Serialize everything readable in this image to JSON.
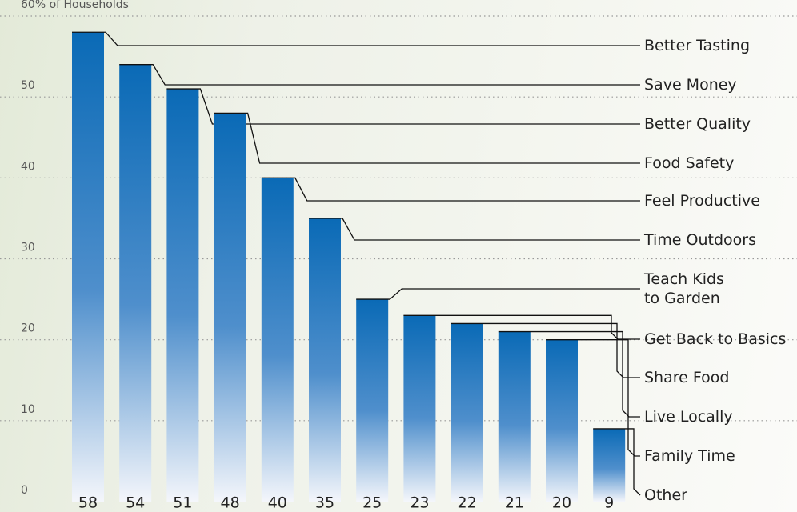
{
  "chart_data": {
    "type": "bar",
    "categories": [
      "Better Tasting",
      "Save Money",
      "Better Quality",
      "Food Safety",
      "Feel Productive",
      "Time Outdoors",
      "Teach Kids\nto Garden",
      "Get Back to Basics",
      "Share Food",
      "Live Locally",
      "Family Time",
      "Other"
    ],
    "values": [
      58,
      54,
      51,
      48,
      40,
      35,
      25,
      23,
      22,
      21,
      20,
      9
    ],
    "color": "#0a6ab6",
    "ylim": [
      0,
      60
    ],
    "yticks": [
      0,
      10,
      20,
      30,
      40,
      50,
      {
        "value": 60,
        "label": "60% of Households"
      }
    ],
    "grid": true
  }
}
